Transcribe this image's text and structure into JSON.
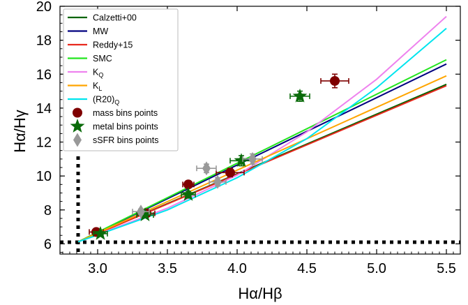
{
  "chart_data": {
    "type": "scatter",
    "xlabel": "Hα/Hβ",
    "ylabel": "Hα/Hγ",
    "xlim": [
      2.73,
      5.6
    ],
    "ylim": [
      5.4,
      20.0
    ],
    "x_ticks": [
      {
        "value": 3.0,
        "label": "3.0"
      },
      {
        "value": 3.5,
        "label": "3.5"
      },
      {
        "value": 4.0,
        "label": "4.0"
      },
      {
        "value": 4.5,
        "label": "4.5"
      },
      {
        "value": 5.0,
        "label": "5.0"
      },
      {
        "value": 5.5,
        "label": "5.5"
      }
    ],
    "y_ticks": [
      {
        "value": 6,
        "label": "6"
      },
      {
        "value": 8,
        "label": "8"
      },
      {
        "value": 10,
        "label": "10"
      },
      {
        "value": 12,
        "label": "12"
      },
      {
        "value": 14,
        "label": "14"
      },
      {
        "value": 16,
        "label": "16"
      },
      {
        "value": 18,
        "label": "18"
      },
      {
        "value": 20,
        "label": "20"
      }
    ],
    "reference_lines": [
      {
        "orientation": "vertical",
        "value": 2.86,
        "style": "dotted",
        "color": "#000000"
      },
      {
        "orientation": "horizontal",
        "value": 6.1,
        "style": "dotted",
        "color": "#000000"
      }
    ],
    "curves": [
      {
        "name": "Calzetti+00",
        "color": "#006400",
        "x": [
          2.86,
          5.5
        ],
        "y": [
          6.12,
          15.4
        ]
      },
      {
        "name": "MW",
        "color": "#00007f",
        "x": [
          2.86,
          5.5
        ],
        "y": [
          6.12,
          16.6
        ]
      },
      {
        "name": "Reddy+15",
        "color": "#e8281e",
        "x": [
          2.86,
          5.5
        ],
        "y": [
          6.12,
          15.32
        ]
      },
      {
        "name": "SMC",
        "color": "#22e51d",
        "x": [
          2.86,
          5.5
        ],
        "y": [
          6.12,
          16.85
        ]
      },
      {
        "name": "K_Q",
        "label_main": "K",
        "label_sub": "Q",
        "color": "#ee82ee",
        "x": [
          2.86,
          3.5,
          4.0,
          4.5,
          5.0,
          5.5
        ],
        "y": [
          6.12,
          8.1,
          10.05,
          12.6,
          15.7,
          19.4
        ]
      },
      {
        "name": "K_L",
        "label_main": "K",
        "label_sub": "L",
        "color": "#ffa500",
        "x": [
          2.86,
          5.5
        ],
        "y": [
          6.12,
          15.9
        ]
      },
      {
        "name": "(R20)_Q",
        "label_main": "(R20)",
        "label_sub": "Q",
        "color": "#00e5ee",
        "x": [
          2.86,
          3.5,
          4.0,
          4.5,
          5.0,
          5.5
        ],
        "y": [
          6.12,
          8.0,
          9.9,
          12.2,
          15.2,
          18.7
        ]
      }
    ],
    "point_series": [
      {
        "name": "mass bins points",
        "marker": "circle",
        "color": "#7f0000",
        "points": [
          {
            "x": 2.99,
            "y": 6.7,
            "xerr": 0.05,
            "yerr": 0.15
          },
          {
            "x": 3.35,
            "y": 7.8,
            "xerr": 0.06,
            "yerr": 0.15
          },
          {
            "x": 3.65,
            "y": 9.5,
            "xerr": 0.04,
            "yerr": 0.2
          },
          {
            "x": 3.95,
            "y": 10.2,
            "xerr": 0.1,
            "yerr": 0.25
          },
          {
            "x": 4.7,
            "y": 15.6,
            "xerr": 0.1,
            "yerr": 0.4
          }
        ]
      },
      {
        "name": "metal bins points",
        "marker": "star",
        "color": "#0a6b0a",
        "points": [
          {
            "x": 3.02,
            "y": 6.6,
            "xerr": 0.05,
            "yerr": 0.1
          },
          {
            "x": 3.34,
            "y": 7.7,
            "xerr": 0.06,
            "yerr": 0.15
          },
          {
            "x": 3.65,
            "y": 8.9,
            "xerr": 0.05,
            "yerr": 0.2
          },
          {
            "x": 4.03,
            "y": 10.9,
            "xerr": 0.08,
            "yerr": 0.3
          },
          {
            "x": 4.45,
            "y": 14.7,
            "xerr": 0.07,
            "yerr": 0.3
          }
        ]
      },
      {
        "name": "sSFR bins points",
        "marker": "diamond",
        "color": "#999999",
        "points": [
          {
            "x": 3.31,
            "y": 7.9,
            "xerr": 0.06,
            "yerr": 0.15
          },
          {
            "x": 3.78,
            "y": 10.45,
            "xerr": 0.07,
            "yerr": 0.25
          },
          {
            "x": 3.86,
            "y": 9.65,
            "xerr": 0.06,
            "yerr": 0.25
          },
          {
            "x": 4.11,
            "y": 11.0,
            "xerr": 0.07,
            "yerr": 0.3
          }
        ]
      }
    ],
    "legend_position": "top-left",
    "grid": false
  }
}
